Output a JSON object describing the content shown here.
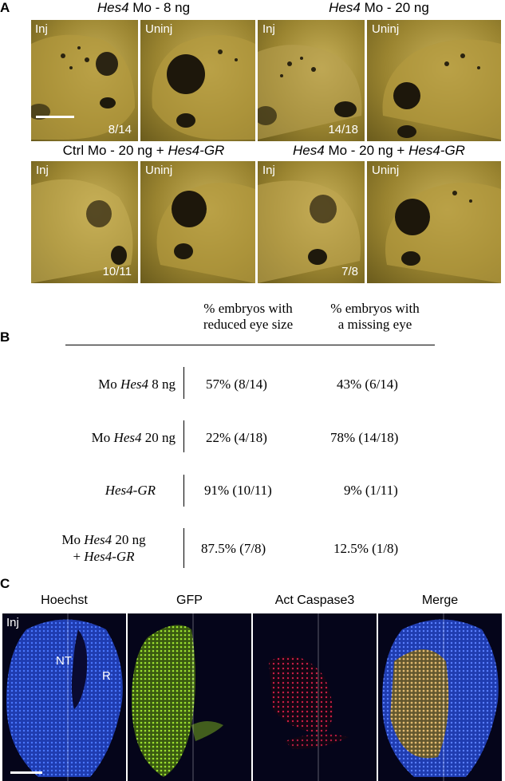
{
  "panel_labels": {
    "a": "A",
    "b": "B",
    "c": "C"
  },
  "section_a": {
    "groups": [
      {
        "title_italic": "Hes4",
        "title_rest": " Mo - 8 ng",
        "inj": "Inj",
        "uninj": "Uninj",
        "ratio": "8/14"
      },
      {
        "title_italic": "Hes4",
        "title_rest": " Mo - 20 ng",
        "inj": "Inj",
        "uninj": "Uninj",
        "ratio": "14/18"
      },
      {
        "title_prefix": "Ctrl Mo - 20 ng + ",
        "title_italic": "Hes4-GR",
        "inj": "Inj",
        "uninj": "Uninj",
        "ratio": "10/11"
      },
      {
        "title_italic": "Hes4",
        "title_rest": " Mo - 20 ng + ",
        "title_italic2": "Hes4-GR",
        "inj": "Inj",
        "uninj": "Uninj",
        "ratio": "7/8"
      }
    ]
  },
  "section_b": {
    "col1_header_line1": "% embryos with",
    "col1_header_line2": "reduced eye size",
    "col2_header_line1": "% embryos with",
    "col2_header_line2": "a missing eye",
    "rows": [
      {
        "label_pre": "Mo ",
        "label_italic": "Hes4",
        "label_post": " 8 ng",
        "reduced": "57% (8/14)",
        "missing": "43% (6/14)"
      },
      {
        "label_pre": "Mo ",
        "label_italic": "Hes4",
        "label_post": " 20 ng",
        "reduced": "22% (4/18)",
        "missing": "78% (14/18)"
      },
      {
        "label_pre": "",
        "label_italic": "Hes4-GR",
        "label_post": "",
        "reduced": "91% (10/11)",
        "missing": "9% (1/11)"
      },
      {
        "label_line1_pre": "Mo ",
        "label_line1_italic": "Hes4",
        "label_line1_post": " 20 ng",
        "label_line2_pre": "+ ",
        "label_line2_italic": "Hes4-GR",
        "reduced": "87.5% (7/8)",
        "missing": "12.5% (1/8)"
      }
    ]
  },
  "section_c": {
    "channels": [
      "Hoechst",
      "GFP",
      "Act Caspase3",
      "Merge"
    ],
    "inj": "Inj",
    "nt": "NT",
    "r": "R"
  },
  "colors": {
    "embryo_bg": "#9a8430",
    "hoechst": "#2a4fd0",
    "gfp": "#8fd42a",
    "caspase": "#e0204a"
  }
}
